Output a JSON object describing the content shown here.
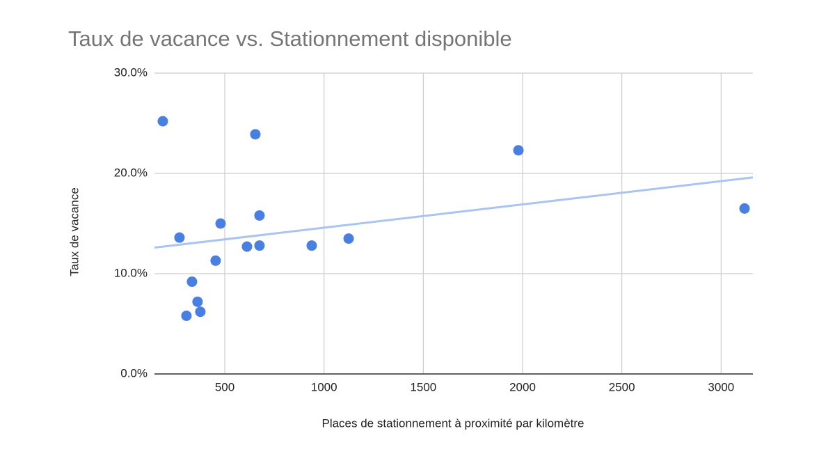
{
  "chart_data": {
    "type": "scatter",
    "title": "Taux de vacance vs. Stationnement disponible",
    "x_label": "Places de stationnement à proximité par kilomètre",
    "y_label": "Taux de vacance",
    "series": [
      {
        "color": "#4a7fe2",
        "x": [
          188,
          272,
          335,
          307,
          363,
          377,
          454,
          479,
          612,
          654,
          675,
          675,
          938,
          1124,
          1979,
          3118
        ],
        "values": [
          25.2,
          13.6,
          9.2,
          5.8,
          7.2,
          6.2,
          11.3,
          15.0,
          12.7,
          23.9,
          15.8,
          12.8,
          12.8,
          13.5,
          22.3,
          16.5
        ]
      }
    ],
    "trendline": {
      "color": "#aac4f2",
      "x": [
        146,
        3160
      ],
      "values": [
        12.6,
        19.6
      ]
    },
    "xlim": [
      146,
      3160
    ],
    "xticks": [
      500,
      1000,
      1500,
      2000,
      2500,
      3000
    ],
    "ylim": [
      0,
      30
    ],
    "yticks": [
      {
        "value": 0,
        "label": "0.0%"
      },
      {
        "value": 10,
        "label": "10.0%"
      },
      {
        "value": 20,
        "label": "20.0%"
      },
      {
        "value": 30,
        "label": "30.0%"
      }
    ],
    "grid": true
  }
}
